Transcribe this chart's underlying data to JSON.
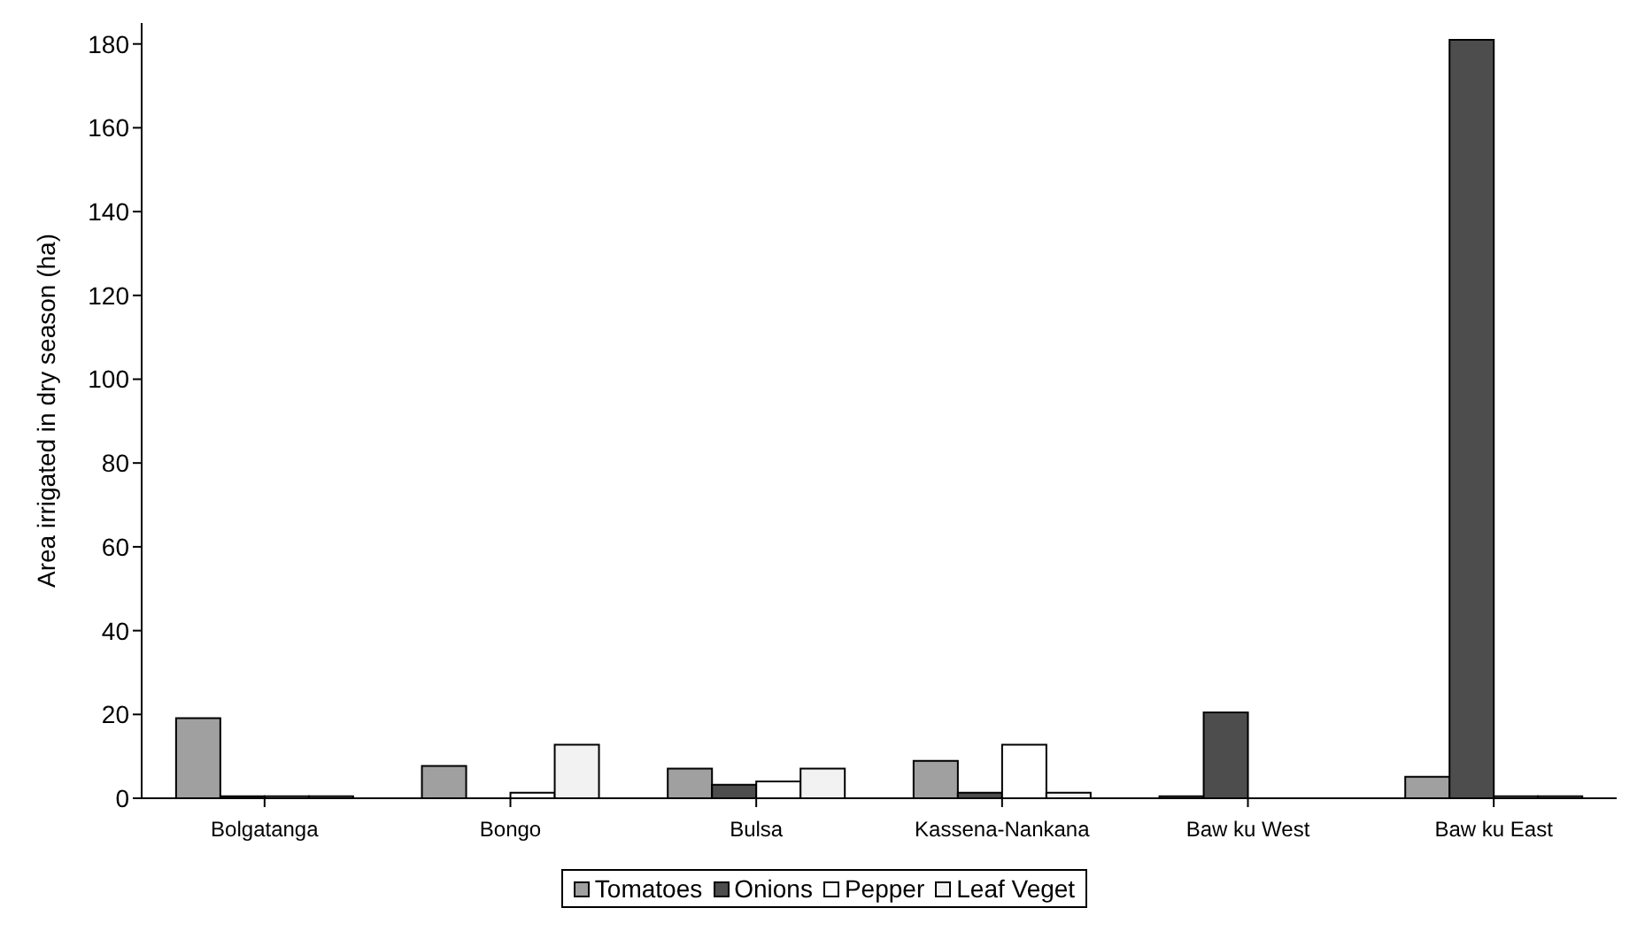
{
  "chart_data": {
    "type": "bar",
    "ylabel": "Area irrigated in dry season (ha)",
    "categories": [
      "Bolgatanga",
      "Bongo",
      "Bulsa",
      "Kassena-Nankana",
      "Baw ku West",
      "Baw ku East"
    ],
    "series": [
      {
        "name": "Tomatoes",
        "color": "#a0a0a0",
        "values": [
          19.1,
          7.7,
          7.1,
          8.9,
          0.5,
          5.1
        ]
      },
      {
        "name": "Onions",
        "color": "#4d4d4d",
        "values": [
          0.5,
          0,
          3.2,
          1.3,
          20.5,
          181
        ]
      },
      {
        "name": "Pepper",
        "color": "#ffffff",
        "values": [
          0.5,
          1.3,
          4.0,
          12.8,
          0,
          0.5
        ]
      },
      {
        "name": "Leaf Veget",
        "color": "#f2f2f2",
        "values": [
          0.5,
          12.8,
          7.1,
          1.3,
          0,
          0.5
        ]
      }
    ],
    "ylim": [
      0,
      185
    ],
    "yticks": [
      0,
      20,
      40,
      60,
      80,
      100,
      120,
      140,
      160,
      180
    ],
    "grid": false,
    "legend": "bottom"
  }
}
